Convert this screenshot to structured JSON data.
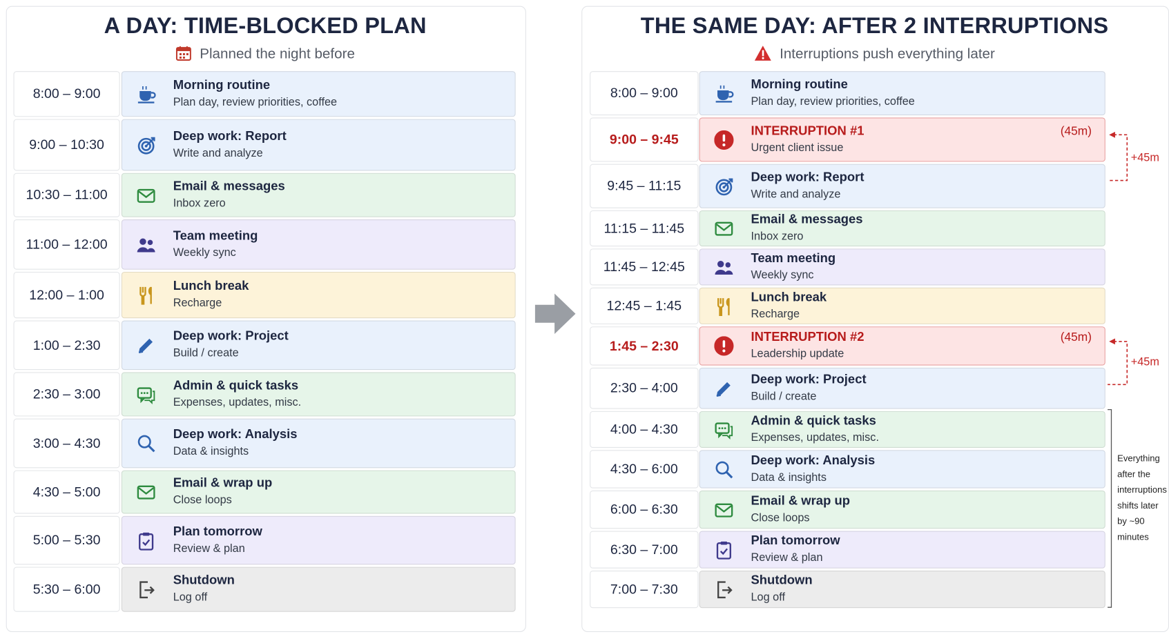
{
  "panels": [
    {
      "title": "A DAY: TIME-BLOCKED PLAN",
      "subtitle": "Planned the night before",
      "rows": [
        {
          "time": "8:00 – 9:00",
          "title": "Morning routine",
          "detail": "Plan day, review priorities, coffee",
          "color": "#e9f1fc"
        },
        {
          "time": "9:00 – 10:30",
          "title": "Deep work: Report",
          "detail": "Write and analyze",
          "color": "#e9f1fc"
        },
        {
          "time": "10:30 – 11:00",
          "title": "Email & messages",
          "detail": "Inbox zero",
          "color": "#e6f5e9"
        },
        {
          "time": "11:00 – 12:00",
          "title": "Team meeting",
          "detail": "Weekly sync",
          "color": "#eeebfb"
        },
        {
          "time": "12:00 – 1:00",
          "title": "Lunch break",
          "detail": "Recharge",
          "color": "#fdf3d9"
        },
        {
          "time": "1:00 – 2:30",
          "title": "Deep work: Project",
          "detail": "Build / create",
          "color": "#e9f1fc"
        },
        {
          "time": "2:30 – 3:00",
          "title": "Admin & quick tasks",
          "detail": "Expenses, updates, misc.",
          "color": "#e6f5e9"
        },
        {
          "time": "3:00 – 4:30",
          "title": "Deep work: Analysis",
          "detail": "Data & insights",
          "color": "#e9f1fc"
        },
        {
          "time": "4:30 – 5:00",
          "title": "Email & wrap up",
          "detail": "Close loops",
          "color": "#e6f5e9"
        },
        {
          "time": "5:00 – 5:30",
          "title": "Plan tomorrow",
          "detail": "Review & plan",
          "color": "#eeebfb"
        },
        {
          "time": "5:30 – 6:00",
          "title": "Shutdown",
          "detail": "Log off",
          "color": "#ececec"
        }
      ]
    },
    {
      "title": "THE SAME DAY: AFTER 2 INTERRUPTIONS",
      "subtitle": "Interruptions push everything later",
      "rows": [
        {
          "time": "8:00 – 9:00",
          "title": "Morning routine",
          "detail": "Plan day, review priorities, coffee",
          "color": "#e9f1fc"
        },
        {
          "time": "9:00 – 9:45",
          "title": "INTERRUPTION #1",
          "detail": "Urgent client issue",
          "duration": "(45m)",
          "color": "#fde4e4",
          "text_color": "#b71c1c"
        },
        {
          "time": "9:45 – 11:15",
          "title": "Deep work: Report",
          "detail": "Write and analyze",
          "color": "#e9f1fc"
        },
        {
          "time": "11:15 – 11:45",
          "title": "Email & messages",
          "detail": "Inbox zero",
          "color": "#e6f5e9"
        },
        {
          "time": "11:45 – 12:45",
          "title": "Team meeting",
          "detail": "Weekly sync",
          "color": "#eeebfb"
        },
        {
          "time": "12:45 – 1:45",
          "title": "Lunch break",
          "detail": "Recharge",
          "color": "#fdf3d9"
        },
        {
          "time": "1:45 – 2:30",
          "title": "INTERRUPTION #2",
          "detail": "Leadership update",
          "duration": "(45m)",
          "color": "#fde4e4",
          "text_color": "#b71c1c"
        },
        {
          "time": "2:30 – 4:00",
          "title": "Deep work: Project",
          "detail": "Build / create",
          "color": "#e9f1fc"
        },
        {
          "time": "4:00 – 4:30",
          "title": "Admin & quick tasks",
          "detail": "Expenses, updates, misc.",
          "color": "#e6f5e9"
        },
        {
          "time": "4:30 – 6:00",
          "title": "Deep work: Analysis",
          "detail": "Data & insights",
          "color": "#e9f1fc"
        },
        {
          "time": "6:00 – 6:30",
          "title": "Email & wrap up",
          "detail": "Close loops",
          "color": "#e6f5e9"
        },
        {
          "time": "6:30 – 7:00",
          "title": "Plan tomorrow",
          "detail": "Review & plan",
          "color": "#eeebfb"
        },
        {
          "time": "7:00 – 7:30",
          "title": "Shutdown",
          "detail": "Log off",
          "color": "#ececec"
        }
      ],
      "annotations": [
        "+45m",
        "+45m"
      ],
      "note": "Everything after the interruptions shifts later by ~90 minutes"
    }
  ]
}
